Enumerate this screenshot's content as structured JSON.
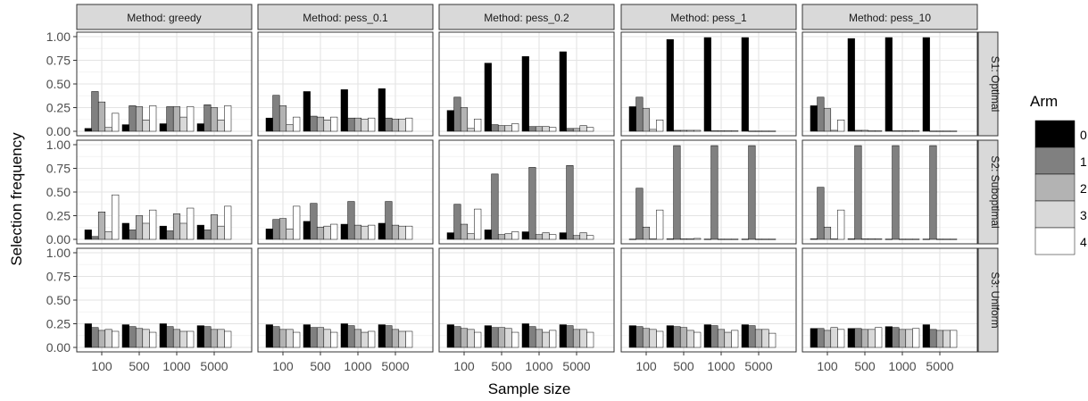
{
  "chart_data": {
    "type": "bar",
    "xlabel": "Sample size",
    "ylabel": "Selection frequency",
    "ylim": [
      0,
      1
    ],
    "yticks": [
      "0.00",
      "0.25",
      "0.50",
      "0.75",
      "1.00"
    ],
    "grid": true,
    "legend": {
      "title": "Arm",
      "position": "right",
      "labels": [
        "0",
        "1",
        "2",
        "3",
        "4"
      ],
      "colors": [
        "#000000",
        "#808080",
        "#b3b3b3",
        "#d9d9d9",
        "#ffffff"
      ]
    },
    "categories": [
      "100",
      "500",
      "1000",
      "5000"
    ],
    "columns": [
      "Method: greedy",
      "Method: pess_0.1",
      "Method: pess_0.2",
      "Method: pess_1",
      "Method: pess_10"
    ],
    "rows": [
      "S1: Optimal",
      "S2: Suboptimal",
      "S3: Uniform"
    ],
    "panels": [
      [
        [
          [
            0.03,
            0.42,
            0.31,
            0.04,
            0.19
          ],
          [
            0.07,
            0.27,
            0.26,
            0.12,
            0.27
          ],
          [
            0.08,
            0.26,
            0.26,
            0.15,
            0.26
          ],
          [
            0.08,
            0.28,
            0.25,
            0.12,
            0.27
          ]
        ],
        [
          [
            0.14,
            0.38,
            0.27,
            0.07,
            0.15
          ],
          [
            0.42,
            0.16,
            0.15,
            0.12,
            0.15
          ],
          [
            0.44,
            0.14,
            0.14,
            0.13,
            0.14
          ],
          [
            0.45,
            0.14,
            0.13,
            0.13,
            0.14
          ]
        ],
        [
          [
            0.22,
            0.36,
            0.25,
            0.03,
            0.13
          ],
          [
            0.72,
            0.07,
            0.06,
            0.06,
            0.08
          ],
          [
            0.79,
            0.05,
            0.05,
            0.05,
            0.04
          ],
          [
            0.84,
            0.03,
            0.03,
            0.06,
            0.04
          ]
        ],
        [
          [
            0.26,
            0.36,
            0.24,
            0.02,
            0.12
          ],
          [
            0.97,
            0.01,
            0.01,
            0.01,
            0.01
          ],
          [
            0.99,
            0.005,
            0.005,
            0.005,
            0.005
          ],
          [
            0.99,
            0.003,
            0.003,
            0.003,
            0.003
          ]
        ],
        [
          [
            0.27,
            0.36,
            0.24,
            0.01,
            0.12
          ],
          [
            0.98,
            0.01,
            0.01,
            0.005,
            0.005
          ],
          [
            0.99,
            0.005,
            0.005,
            0.005,
            0.005
          ],
          [
            0.99,
            0.003,
            0.003,
            0.003,
            0.003
          ]
        ]
      ],
      [
        [
          [
            0.1,
            0.03,
            0.29,
            0.08,
            0.47
          ],
          [
            0.17,
            0.1,
            0.25,
            0.17,
            0.31
          ],
          [
            0.14,
            0.09,
            0.27,
            0.17,
            0.33
          ],
          [
            0.15,
            0.1,
            0.26,
            0.14,
            0.35
          ]
        ],
        [
          [
            0.11,
            0.21,
            0.22,
            0.11,
            0.35
          ],
          [
            0.19,
            0.38,
            0.13,
            0.14,
            0.16
          ],
          [
            0.16,
            0.4,
            0.15,
            0.14,
            0.15
          ],
          [
            0.17,
            0.4,
            0.15,
            0.14,
            0.14
          ]
        ],
        [
          [
            0.07,
            0.37,
            0.16,
            0.06,
            0.32
          ],
          [
            0.1,
            0.69,
            0.05,
            0.06,
            0.08
          ],
          [
            0.08,
            0.76,
            0.05,
            0.07,
            0.05
          ],
          [
            0.07,
            0.78,
            0.04,
            0.07,
            0.04
          ]
        ],
        [
          [
            0.003,
            0.54,
            0.13,
            0.005,
            0.31
          ],
          [
            0.005,
            0.99,
            0.005,
            0.005,
            0.01
          ],
          [
            0.003,
            0.99,
            0.003,
            0.003,
            0.003
          ],
          [
            0.003,
            0.99,
            0.003,
            0.003,
            0.003
          ]
        ],
        [
          [
            0.005,
            0.55,
            0.13,
            0.005,
            0.31
          ],
          [
            0.005,
            0.99,
            0.005,
            0.005,
            0.005
          ],
          [
            0.003,
            0.99,
            0.003,
            0.003,
            0.003
          ],
          [
            0.003,
            0.99,
            0.003,
            0.003,
            0.003
          ]
        ]
      ],
      [
        [
          [
            0.25,
            0.21,
            0.18,
            0.19,
            0.17
          ],
          [
            0.24,
            0.22,
            0.2,
            0.19,
            0.16
          ],
          [
            0.25,
            0.22,
            0.19,
            0.17,
            0.17
          ],
          [
            0.23,
            0.22,
            0.19,
            0.19,
            0.17
          ]
        ],
        [
          [
            0.24,
            0.22,
            0.19,
            0.19,
            0.16
          ],
          [
            0.24,
            0.21,
            0.21,
            0.19,
            0.16
          ],
          [
            0.25,
            0.23,
            0.19,
            0.16,
            0.17
          ],
          [
            0.24,
            0.23,
            0.19,
            0.17,
            0.17
          ]
        ],
        [
          [
            0.24,
            0.22,
            0.2,
            0.19,
            0.16
          ],
          [
            0.23,
            0.21,
            0.21,
            0.2,
            0.16
          ],
          [
            0.25,
            0.22,
            0.19,
            0.16,
            0.18
          ],
          [
            0.24,
            0.23,
            0.19,
            0.19,
            0.16
          ]
        ],
        [
          [
            0.23,
            0.22,
            0.2,
            0.19,
            0.17
          ],
          [
            0.23,
            0.22,
            0.21,
            0.18,
            0.16
          ],
          [
            0.24,
            0.23,
            0.19,
            0.16,
            0.18
          ],
          [
            0.24,
            0.23,
            0.19,
            0.19,
            0.15
          ]
        ],
        [
          [
            0.2,
            0.2,
            0.18,
            0.21,
            0.19
          ],
          [
            0.2,
            0.2,
            0.19,
            0.19,
            0.21
          ],
          [
            0.22,
            0.21,
            0.19,
            0.19,
            0.2
          ],
          [
            0.24,
            0.19,
            0.18,
            0.18,
            0.18
          ]
        ]
      ]
    ]
  }
}
